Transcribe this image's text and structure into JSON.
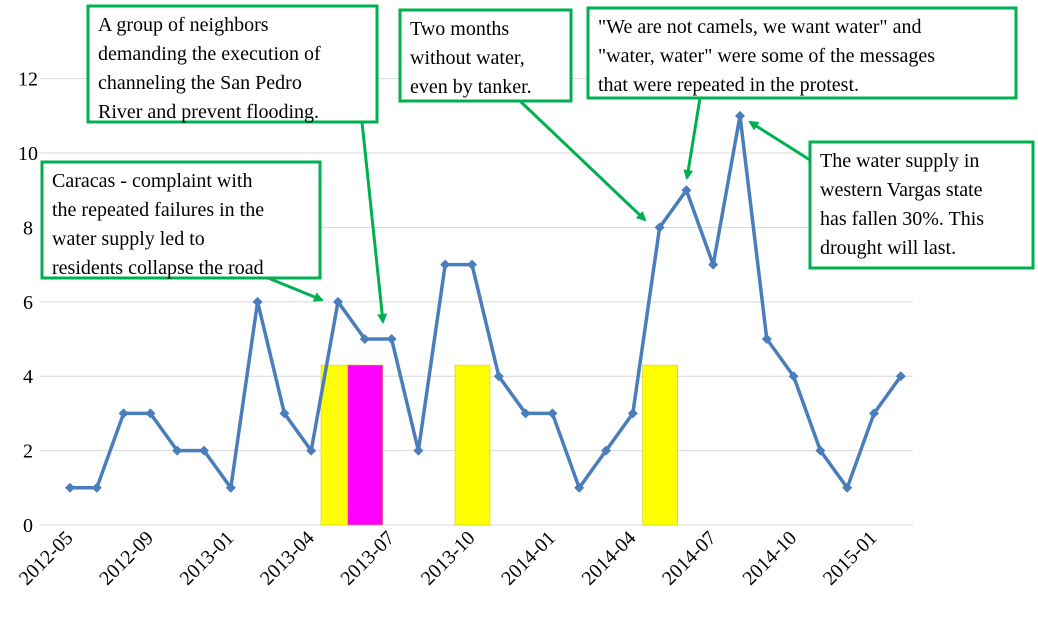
{
  "chart_data": {
    "type": "line",
    "categories": [
      "2012-05",
      null,
      null,
      "2012-09",
      null,
      null,
      "2013-01",
      null,
      null,
      "2013-04",
      null,
      null,
      "2013-07",
      null,
      null,
      "2013-10",
      null,
      null,
      "2014-01",
      null,
      null,
      "2014-04",
      null,
      null,
      "2014-07",
      null,
      null,
      "2014-10",
      null,
      null,
      "2015-01",
      null
    ],
    "series": [
      {
        "color": "#4a7ebb",
        "values": [
          1,
          1,
          3,
          3,
          2,
          2,
          1,
          6,
          3,
          2,
          6,
          5,
          5,
          2,
          7,
          7,
          4,
          3,
          3,
          1,
          2,
          3,
          8,
          9,
          7,
          11,
          5,
          4,
          2,
          1,
          3,
          4
        ]
      }
    ],
    "bars": [
      {
        "color": "#ffff00",
        "values": [
          null,
          null,
          null,
          null,
          null,
          null,
          null,
          null,
          null,
          null,
          4.3,
          null,
          null,
          null,
          null,
          null,
          null,
          null,
          null,
          null,
          null,
          null,
          null,
          null,
          null,
          null,
          null,
          null,
          null,
          null,
          null,
          null
        ]
      },
      {
        "color": "#ff00ff",
        "values": [
          null,
          null,
          null,
          null,
          null,
          null,
          null,
          null,
          null,
          null,
          null,
          4.3,
          null,
          null,
          null,
          null,
          null,
          null,
          null,
          null,
          null,
          null,
          null,
          null,
          null,
          null,
          null,
          null,
          null,
          null,
          null,
          null
        ]
      },
      {
        "color": "#ffff00",
        "values": [
          null,
          null,
          null,
          null,
          null,
          null,
          null,
          null,
          null,
          null,
          null,
          null,
          null,
          null,
          null,
          4.3,
          null,
          null,
          null,
          null,
          null,
          null,
          4.3,
          null,
          null,
          null,
          null,
          null,
          null,
          null,
          null,
          null
        ]
      }
    ],
    "ylim": [
      0,
      13.9
    ],
    "yticks": [
      0,
      2,
      4,
      6,
      8,
      10,
      12
    ],
    "grid": true,
    "annotations": [
      {
        "lines": [
          "A group of neighbors",
          "demanding the execution of",
          "channeling the San Pedro",
          "River and prevent flooding."
        ]
      },
      {
        "lines": [
          "Two months",
          "without water,",
          "even by tanker."
        ]
      },
      {
        "lines": [
          "\"We are not camels, we want water\" and",
          "\"water, water\" were some of the messages",
          "that were repeated in the protest."
        ]
      },
      {
        "lines": [
          "The water supply in",
          "western Vargas state",
          "has fallen 30%. This",
          "drought will last."
        ]
      },
      {
        "lines": [
          "Caracas - complaint with",
          "the repeated failures in the",
          "water supply led to",
          "residents collapse the road"
        ]
      }
    ]
  }
}
